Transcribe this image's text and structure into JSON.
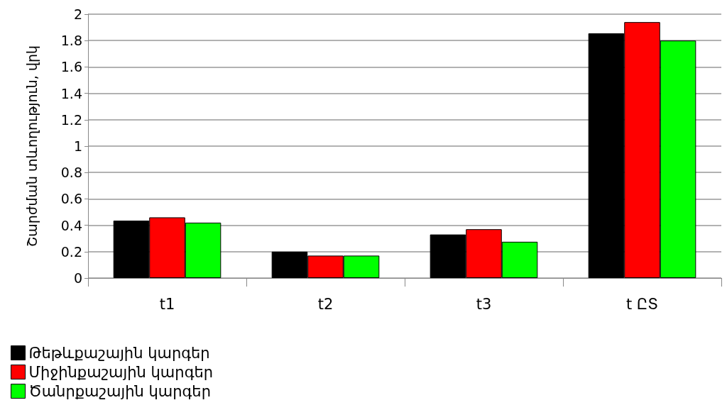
{
  "chart_data": {
    "type": "bar",
    "ylabel": "Շարժման տևողություն, վրկ",
    "categories": [
      "t1",
      "t2",
      "t3",
      "t ԸՏ"
    ],
    "series": [
      {
        "name": "Թեթևքաշային կարգեր",
        "color": "#000000",
        "values": [
          0.435,
          0.2,
          0.33,
          1.855
        ]
      },
      {
        "name": "Միջինքաշային կարգեր",
        "color": "#ff0000",
        "values": [
          0.46,
          0.17,
          0.37,
          1.94
        ]
      },
      {
        "name": "Ծանրքաշային կարգեր",
        "color": "#00ff00",
        "values": [
          0.42,
          0.17,
          0.275,
          1.8
        ]
      }
    ],
    "ylim": [
      0,
      2
    ],
    "yticks": [
      0,
      0.2,
      0.4,
      0.6,
      0.8,
      1,
      1.2,
      1.4,
      1.6,
      1.8,
      2
    ],
    "grid": "y",
    "legend": "bottom left"
  }
}
